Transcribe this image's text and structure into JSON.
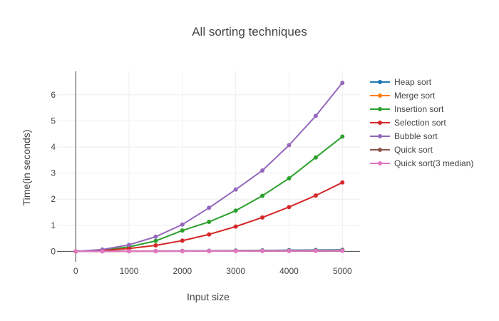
{
  "chart_data": {
    "type": "line",
    "title": "All sorting techniques",
    "xlabel": "Input size",
    "ylabel": "Time(in seconds)",
    "xlim": [
      -350,
      5330
    ],
    "ylim": [
      -0.4,
      6.9
    ],
    "xticks": [
      0,
      1000,
      2000,
      3000,
      4000,
      5000
    ],
    "xtick_labels": [
      "0",
      "1000",
      "2000",
      "3000",
      "4000",
      "5000"
    ],
    "yticks": [
      0,
      1,
      2,
      3,
      4,
      5,
      6
    ],
    "ytick_labels": [
      "0",
      "1",
      "2",
      "3",
      "4",
      "5",
      "6"
    ],
    "grid": true,
    "legend_position": "top-right",
    "x": [
      0,
      500,
      1000,
      1500,
      2000,
      2500,
      3000,
      3500,
      4000,
      4500,
      5000
    ],
    "series": [
      {
        "name": "Heap sort",
        "color": "#1f77b4",
        "values": [
          0,
          0.003,
          0.007,
          0.012,
          0.018,
          0.024,
          0.03,
          0.036,
          0.043,
          0.05,
          0.058
        ]
      },
      {
        "name": "Merge sort",
        "color": "#ff7f0e",
        "values": [
          0,
          0.002,
          0.005,
          0.008,
          0.011,
          0.014,
          0.017,
          0.02,
          0.024,
          0.027,
          0.031
        ]
      },
      {
        "name": "Insertion sort",
        "color": "#2ca02c",
        "values": [
          0,
          0.04,
          0.17,
          0.4,
          0.8,
          1.13,
          1.56,
          2.13,
          2.8,
          3.6,
          4.4
        ]
      },
      {
        "name": "Selection sort",
        "color": "#d62728",
        "values": [
          0,
          0.03,
          0.11,
          0.23,
          0.41,
          0.65,
          0.95,
          1.3,
          1.7,
          2.14,
          2.64
        ]
      },
      {
        "name": "Bubble sort",
        "color": "#9467bd",
        "values": [
          0,
          0.07,
          0.25,
          0.56,
          1.03,
          1.67,
          2.37,
          3.1,
          4.07,
          5.19,
          6.46
        ]
      },
      {
        "name": "Quick sort",
        "color": "#8c564b",
        "values": [
          0,
          0.002,
          0.004,
          0.006,
          0.008,
          0.01,
          0.012,
          0.014,
          0.016,
          0.019,
          0.022
        ]
      },
      {
        "name": "Quick sort(3 median)",
        "color": "#e377c2",
        "values": [
          0,
          0.001,
          0.003,
          0.005,
          0.007,
          0.009,
          0.011,
          0.013,
          0.015,
          0.017,
          0.02
        ]
      }
    ]
  }
}
